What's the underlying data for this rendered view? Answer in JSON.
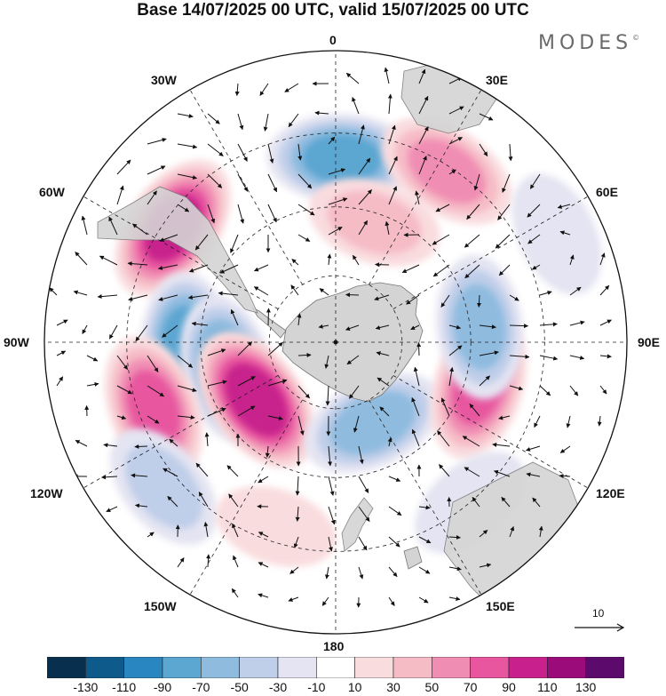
{
  "title": "Base 14/07/2025 00 UTC, valid 15/07/2025 00 UTC",
  "logo": {
    "text": "MODES",
    "mark": "©"
  },
  "map": {
    "projection": "south-polar-stereographic",
    "meridian_labels": {
      "lon_0": "0",
      "lon_30e": "30E",
      "lon_60e": "60E",
      "lon_90e": "90E",
      "lon_120e": "120E",
      "lon_150e": "150E",
      "lon_180": "180",
      "lon_150w": "150W",
      "lon_120w": "120W",
      "lon_90w": "90W",
      "lon_60w": "60W",
      "lon_30w": "30W"
    },
    "landmass_color": "#d4d4d4",
    "vector_reference": {
      "value": "10"
    },
    "anomaly_centers": [
      {
        "name": "neg-0",
        "lon": 2,
        "lat": -50,
        "value": -80
      },
      {
        "name": "pos-atl-60w",
        "lon": -55,
        "lat": -47,
        "value": 100
      },
      {
        "name": "neg-90w",
        "lon": -92,
        "lat": -57,
        "value": -85
      },
      {
        "name": "neg-100w",
        "lon": -104,
        "lat": -65,
        "value": -80
      },
      {
        "name": "pos-110w",
        "lon": -110,
        "lat": -48,
        "value": 80
      },
      {
        "name": "pos-125w",
        "lon": -126,
        "lat": -68,
        "value": 110
      },
      {
        "name": "neg-155e",
        "lon": 155,
        "lat": -70,
        "value": -65
      },
      {
        "name": "pos-110e",
        "lon": 107,
        "lat": -57,
        "value": 80
      },
      {
        "name": "pos-30e",
        "lon": 33,
        "lat": -46,
        "value": 60
      },
      {
        "name": "pos-15e",
        "lon": 18,
        "lat": -62,
        "value": 40
      },
      {
        "name": "neg-85e",
        "lon": 84,
        "lat": -58,
        "value": -60
      },
      {
        "name": "neg-125w-mid",
        "lon": -130,
        "lat": -42,
        "value": -40
      },
      {
        "name": "neg-60e",
        "lon": 64,
        "lat": -38,
        "value": -30
      },
      {
        "name": "pos-165w",
        "lon": -162,
        "lat": -48,
        "value": 25
      },
      {
        "name": "neg-140e",
        "lon": 140,
        "lat": -45,
        "value": -30
      }
    ]
  },
  "colorbar": {
    "colors": [
      "#08304e",
      "#0e5a8a",
      "#2a86c0",
      "#5ca6d2",
      "#8fbbdf",
      "#bfcee9",
      "#e4e4f2",
      "#ffffff",
      "#f9dcde",
      "#f6bcc6",
      "#f08db3",
      "#e7569f",
      "#c8208c",
      "#9b0b7a",
      "#5c0a6b"
    ],
    "tick_labels": [
      "-130",
      "-110",
      "-90",
      "-70",
      "-50",
      "-30",
      "-10",
      "10",
      "30",
      "50",
      "70",
      "90",
      "110",
      "130"
    ]
  }
}
